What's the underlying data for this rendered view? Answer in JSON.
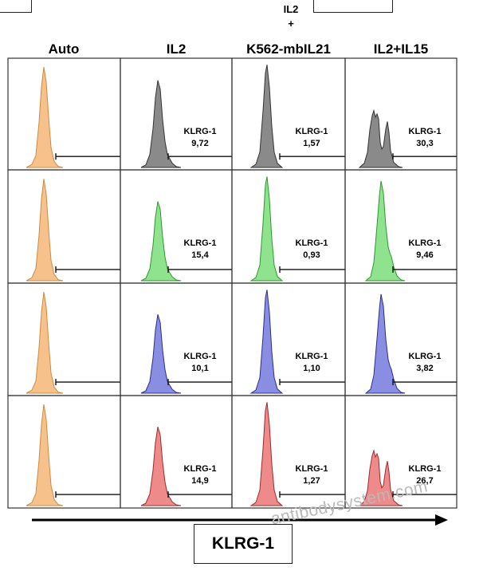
{
  "header": {
    "top_label_il2": "IL2",
    "top_label_plus": "+",
    "columns": [
      "Auto",
      "IL2",
      "K562-mbIL21",
      "IL2+IL15"
    ]
  },
  "gate": {
    "marker": "KLRG-1"
  },
  "panels": {
    "columns": [
      "Auto",
      "IL2",
      "IL2 + K562-mbIL21",
      "IL2+IL15"
    ],
    "rows": [
      {
        "color": "#8a8a8a",
        "edge": "#333333",
        "values": [
          "9,72",
          "1,57",
          "30,3"
        ]
      },
      {
        "color": "#8fe38f",
        "edge": "#2a9a2a",
        "values": [
          "15,4",
          "0,93",
          "9,46"
        ]
      },
      {
        "color": "#8a8ee3",
        "edge": "#2a2f8f",
        "values": [
          "10,1",
          "1,10",
          "3,82"
        ]
      },
      {
        "color": "#ee8a8a",
        "edge": "#a02a2a",
        "values": [
          "14,9",
          "1,27",
          "26,7"
        ]
      }
    ],
    "auto_color": "#f6c18a",
    "auto_edge": "#d08a40"
  },
  "axis": {
    "label": "KLRG-1"
  },
  "watermark": "antibodysystem.com"
}
